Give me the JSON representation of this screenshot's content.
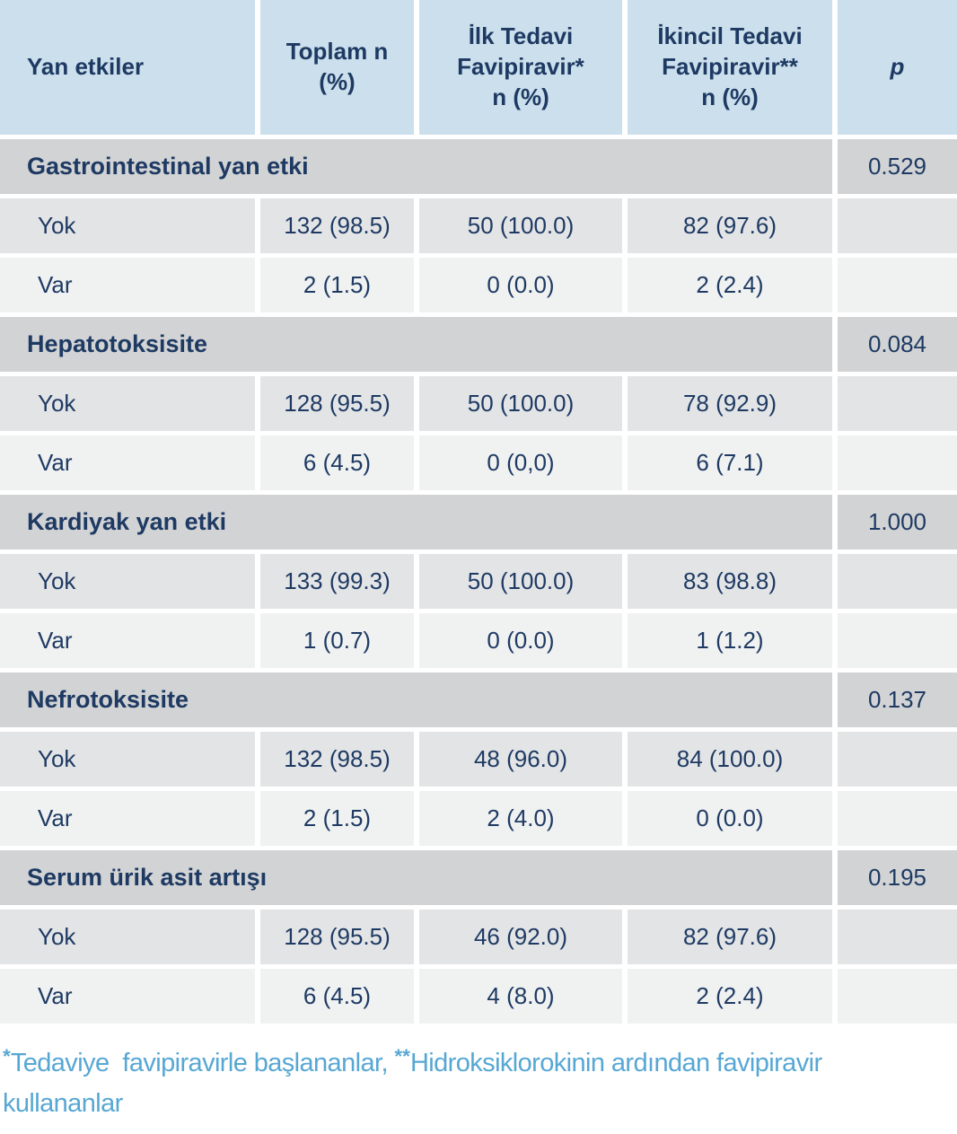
{
  "colors": {
    "header_bg": "#cbdfec",
    "section_bg": "#d2d3d4",
    "row_yok_bg": "#e3e4e6",
    "row_var_bg": "#f0f1f1",
    "text": "#1e3a63",
    "footnote_text": "#57a7d4"
  },
  "table": {
    "header": {
      "col1": "Yan etkiler",
      "col2": "Toplam n\n(%)",
      "col3": "İlk Tedavi\nFavipiravir*\nn (%)",
      "col4": "İkincil Tedavi\nFavipiravir**\nn (%)",
      "col5": "p"
    },
    "sections": [
      {
        "label": "Gastrointestinal yan etki",
        "p": "0.529",
        "rows": [
          {
            "label": "Yok",
            "total": "132 (98.5)",
            "first": "50 (100.0)",
            "second": "82 (97.6)"
          },
          {
            "label": "Var",
            "total": "2 (1.5)",
            "first": "0 (0.0)",
            "second": "2 (2.4)"
          }
        ]
      },
      {
        "label": "Hepatotoksisite",
        "p": "0.084",
        "rows": [
          {
            "label": "Yok",
            "total": "128 (95.5)",
            "first": "50 (100.0)",
            "second": "78 (92.9)"
          },
          {
            "label": "Var",
            "total": "6 (4.5)",
            "first": "0 (0,0)",
            "second": "6 (7.1)"
          }
        ]
      },
      {
        "label": "Kardiyak yan etki",
        "p": "1.000",
        "rows": [
          {
            "label": "Yok",
            "total": "133 (99.3)",
            "first": "50 (100.0)",
            "second": "83 (98.8)"
          },
          {
            "label": "Var",
            "total": "1 (0.7)",
            "first": "0 (0.0)",
            "second": "1 (1.2)"
          }
        ]
      },
      {
        "label": "Nefrotoksisite",
        "p": "0.137",
        "rows": [
          {
            "label": "Yok",
            "total": "132 (98.5)",
            "first": "48 (96.0)",
            "second": "84 (100.0)"
          },
          {
            "label": "Var",
            "total": "2 (1.5)",
            "first": "2 (4.0)",
            "second": "0 (0.0)"
          }
        ]
      },
      {
        "label": "Serum ürik asit artışı",
        "p": "0.195",
        "rows": [
          {
            "label": "Yok",
            "total": "128 (95.5)",
            "first": "46 (92.0)",
            "second": "82 (97.6)"
          },
          {
            "label": "Var",
            "total": "6 (4.5)",
            "first": "4 (8.0)",
            "second": "2 (2.4)"
          }
        ]
      }
    ]
  },
  "footnote": {
    "star1": "*",
    "part1": "Tedaviye  favipiravirle başlananlar, ",
    "star2": "**",
    "part2": "Hidroksiklorokinin ardından favipiravir kullananlar"
  }
}
